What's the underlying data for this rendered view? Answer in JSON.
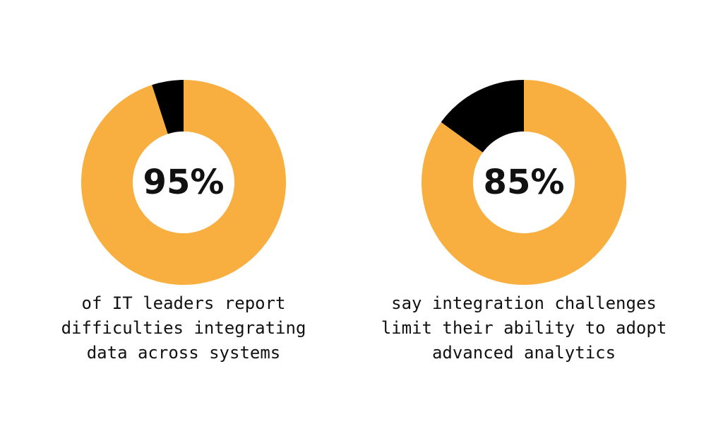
{
  "chart_data": [
    {
      "type": "donut",
      "categories": [
        null,
        null
      ],
      "values": [
        95,
        5
      ],
      "value_labels": [
        "95%",
        null
      ],
      "colors": [
        "#f9af3f",
        "#000000"
      ],
      "caption": [
        "of IT leaders report",
        "difficulties integrating",
        "data across systems"
      ]
    },
    {
      "type": "donut",
      "categories": [
        null,
        null
      ],
      "values": [
        85,
        15
      ],
      "value_labels": [
        "85%",
        null
      ],
      "colors": [
        "#f9af3f",
        "#000000"
      ],
      "caption": [
        "say integration challenges",
        "limit their ability to adopt",
        "advanced analytics"
      ]
    }
  ]
}
